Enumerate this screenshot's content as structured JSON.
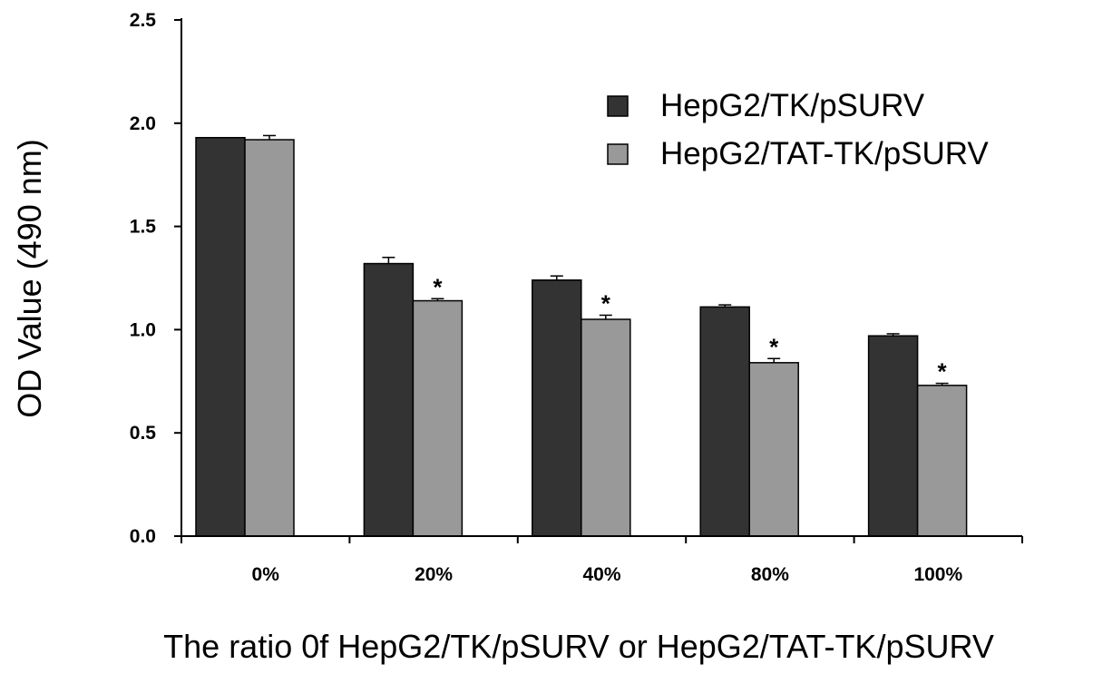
{
  "chart_data": {
    "type": "bar",
    "categories": [
      "0%",
      "20%",
      "40%",
      "80%",
      "100%"
    ],
    "series": [
      {
        "name": "HepG2/TK/pSURV",
        "color": "#333333",
        "values": [
          1.93,
          1.32,
          1.24,
          1.11,
          0.97
        ],
        "errors": [
          0.0,
          0.03,
          0.02,
          0.01,
          0.01
        ]
      },
      {
        "name": "HepG2/TAT-TK/pSURV",
        "color": "#999999",
        "values": [
          1.92,
          1.14,
          1.05,
          0.84,
          0.73
        ],
        "errors": [
          0.02,
          0.01,
          0.02,
          0.02,
          0.01
        ]
      }
    ],
    "significance": [
      "",
      "*",
      "*",
      "*",
      "*"
    ],
    "xlabel": "The ratio 0f HepG2/TK/pSURV or HepG2/TAT-TK/pSURV",
    "ylabel": "OD Value (490 nm)",
    "yticks": [
      "0.0",
      "0.5",
      "1.0",
      "1.5",
      "2.0",
      "2.5"
    ],
    "ylim": [
      0,
      2.5
    ],
    "legend_position": "top-right",
    "grid": false
  }
}
